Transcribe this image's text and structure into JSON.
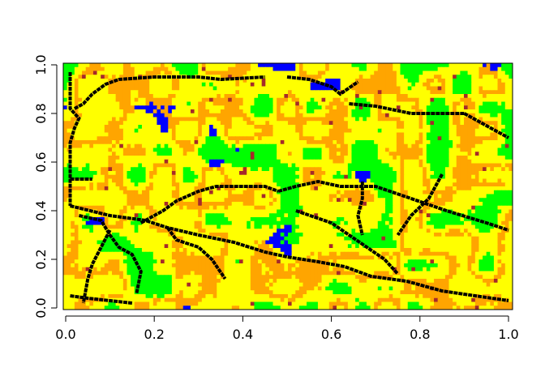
{
  "chart_data": {
    "type": "heatmap",
    "title": "",
    "xlabel": "",
    "ylabel": "",
    "xlim": [
      0,
      1
    ],
    "ylim": [
      0,
      1
    ],
    "x_ticks": [
      "0.0",
      "0.2",
      "0.4",
      "0.6",
      "0.8",
      "1.0"
    ],
    "y_ticks": [
      "0.0",
      "0.2",
      "0.4",
      "0.6",
      "0.8",
      "1.0"
    ],
    "grid": false,
    "legend": "none",
    "palette": {
      "green": "#00ff00",
      "yellow": "#ffff00",
      "orange": "#ffa500",
      "blue": "#0000ff",
      "brown": "#a52a2a",
      "black": "#000000"
    },
    "raster_resolution": "approx. 120 x 64 cells, seeded irregular patches (noise-like map)",
    "black_lines": [
      [
        [
          0.01,
          0.97
        ],
        [
          0.01,
          0.82
        ],
        [
          0.03,
          0.78
        ],
        [
          0.02,
          0.74
        ],
        [
          0.01,
          0.68
        ],
        [
          0.01,
          0.55
        ],
        [
          0.01,
          0.42
        ]
      ],
      [
        [
          0.01,
          0.53
        ],
        [
          0.06,
          0.53
        ]
      ],
      [
        [
          0.02,
          0.82
        ],
        [
          0.04,
          0.84
        ],
        [
          0.06,
          0.88
        ],
        [
          0.09,
          0.92
        ],
        [
          0.12,
          0.94
        ],
        [
          0.2,
          0.95
        ],
        [
          0.3,
          0.95
        ],
        [
          0.35,
          0.94
        ],
        [
          0.45,
          0.95
        ]
      ],
      [
        [
          0.5,
          0.95
        ],
        [
          0.55,
          0.94
        ],
        [
          0.6,
          0.91
        ],
        [
          0.62,
          0.88
        ],
        [
          0.66,
          0.93
        ]
      ],
      [
        [
          0.64,
          0.84
        ],
        [
          0.7,
          0.83
        ],
        [
          0.78,
          0.8
        ],
        [
          0.9,
          0.8
        ]
      ],
      [
        [
          0.01,
          0.42
        ],
        [
          0.1,
          0.38
        ],
        [
          0.18,
          0.36
        ],
        [
          0.23,
          0.33
        ],
        [
          0.3,
          0.3
        ],
        [
          0.38,
          0.27
        ],
        [
          0.45,
          0.23
        ],
        [
          0.5,
          0.21
        ],
        [
          0.57,
          0.19
        ],
        [
          0.63,
          0.17
        ],
        [
          0.69,
          0.13
        ],
        [
          0.77,
          0.11
        ],
        [
          0.85,
          0.07
        ],
        [
          1.0,
          0.03
        ]
      ],
      [
        [
          0.03,
          0.38
        ],
        [
          0.08,
          0.36
        ],
        [
          0.1,
          0.3
        ],
        [
          0.12,
          0.25
        ],
        [
          0.15,
          0.22
        ],
        [
          0.17,
          0.15
        ],
        [
          0.16,
          0.06
        ]
      ],
      [
        [
          0.1,
          0.32
        ],
        [
          0.08,
          0.25
        ],
        [
          0.06,
          0.18
        ],
        [
          0.05,
          0.12
        ],
        [
          0.04,
          0.02
        ]
      ],
      [
        [
          0.17,
          0.35
        ],
        [
          0.22,
          0.4
        ],
        [
          0.25,
          0.44
        ],
        [
          0.3,
          0.48
        ],
        [
          0.34,
          0.5
        ],
        [
          0.4,
          0.5
        ],
        [
          0.45,
          0.5
        ],
        [
          0.48,
          0.48
        ]
      ],
      [
        [
          0.23,
          0.33
        ],
        [
          0.25,
          0.28
        ],
        [
          0.3,
          0.25
        ],
        [
          0.33,
          0.2
        ],
        [
          0.36,
          0.12
        ]
      ],
      [
        [
          0.48,
          0.48
        ],
        [
          0.52,
          0.5
        ],
        [
          0.57,
          0.52
        ],
        [
          0.62,
          0.5
        ],
        [
          0.7,
          0.5
        ],
        [
          0.78,
          0.45
        ],
        [
          0.86,
          0.4
        ],
        [
          0.95,
          0.35
        ],
        [
          1.0,
          0.32
        ]
      ],
      [
        [
          0.52,
          0.4
        ],
        [
          0.6,
          0.35
        ],
        [
          0.64,
          0.3
        ],
        [
          0.68,
          0.25
        ],
        [
          0.72,
          0.2
        ],
        [
          0.75,
          0.14
        ]
      ],
      [
        [
          0.67,
          0.52
        ],
        [
          0.67,
          0.45
        ],
        [
          0.66,
          0.38
        ],
        [
          0.67,
          0.3
        ]
      ],
      [
        [
          0.85,
          0.55
        ],
        [
          0.82,
          0.45
        ],
        [
          0.78,
          0.38
        ],
        [
          0.75,
          0.3
        ]
      ],
      [
        [
          0.9,
          0.8
        ],
        [
          0.95,
          0.75
        ],
        [
          1.0,
          0.7
        ]
      ],
      [
        [
          0.01,
          0.05
        ],
        [
          0.05,
          0.04
        ],
        [
          0.1,
          0.03
        ],
        [
          0.15,
          0.02
        ]
      ]
    ]
  }
}
